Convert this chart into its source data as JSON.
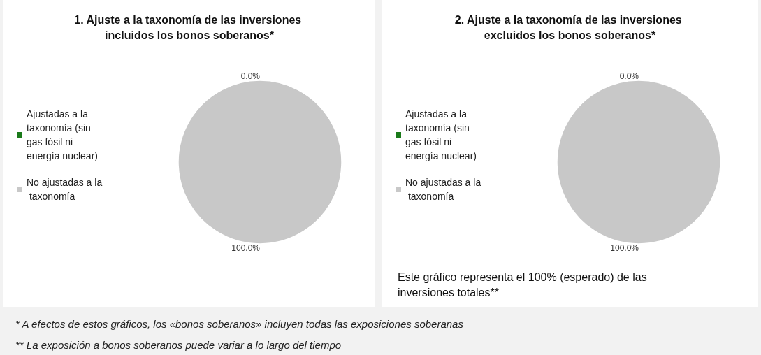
{
  "chart_data": [
    {
      "type": "pie",
      "title": "1. Ajuste a la taxonomía de las inversiones incluidos los bonos soberanos*",
      "categories": [
        "Ajustadas a la taxonomía (sin gas fósil ni energía nuclear)",
        "No ajustadas a la taxonomía"
      ],
      "values": [
        0,
        100
      ],
      "colors": [
        "#1a7a1a",
        "#c8c8c8"
      ],
      "value_labels": [
        "0.0%",
        "100.0%"
      ],
      "legend": "left",
      "annotations": [
        "* A efectos de estos gráficos, los «bonos soberanos» incluyen todas las exposiciones soberanas",
        "** La exposición a bonos soberanos puede variar a lo largo del tiempo"
      ]
    },
    {
      "type": "pie",
      "title": "2. Ajuste a la taxonomía de las inversiones excluidos los bonos soberanos*",
      "categories": [
        "Ajustadas a la taxonomía (sin gas fósil ni energía nuclear)",
        "No ajustadas a la taxonomía"
      ],
      "values": [
        0,
        100
      ],
      "colors": [
        "#1a7a1a",
        "#c8c8c8"
      ],
      "value_labels": [
        "0.0%",
        "100.0%"
      ],
      "legend": "left",
      "annotations": [
        "Este gráfico representa el 100% (esperado) de las inversiones totales**"
      ]
    }
  ]
}
